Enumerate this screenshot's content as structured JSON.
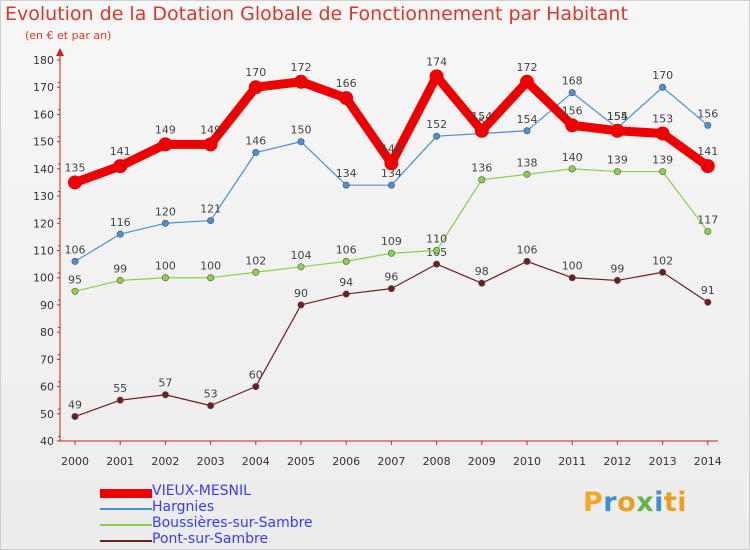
{
  "header": {
    "title": "Evolution de la Dotation Globale de Fonctionnement par Habitant",
    "subtitle": "(en € et par an)"
  },
  "logo": {
    "text": "Proxiti",
    "letters": [
      "P",
      "r",
      "o",
      "x",
      "i",
      "ti"
    ]
  },
  "chart_data": {
    "type": "line",
    "title": "Evolution de la Dotation Globale de Fonctionnement par Habitant",
    "subtitle": "(en € et par an)",
    "xlabel": "",
    "ylabel": "",
    "x": [
      "2000",
      "2001",
      "2002",
      "2003",
      "2004",
      "2005",
      "2006",
      "2007",
      "2008",
      "2009",
      "2010",
      "2011",
      "2012",
      "2013",
      "2014"
    ],
    "ylim": [
      40,
      180
    ],
    "yticks": [
      40,
      50,
      60,
      70,
      80,
      90,
      100,
      110,
      120,
      130,
      140,
      150,
      160,
      170,
      180
    ],
    "grid": false,
    "legend_position": "bottom-left",
    "series": [
      {
        "name": "VIEUX-MESNIL",
        "color": "#ee0000",
        "values": [
          135,
          141,
          149,
          149,
          170,
          172,
          166,
          142,
          174,
          154,
          172,
          156,
          154,
          153,
          141
        ]
      },
      {
        "name": "Hargnies",
        "color": "#4d8fd1",
        "values": [
          106,
          116,
          120,
          121,
          146,
          150,
          134,
          134,
          152,
          153,
          154,
          168,
          155,
          170,
          156
        ]
      },
      {
        "name": "Boussières-sur-Sambre",
        "color": "#8ad24e",
        "values": [
          95,
          99,
          100,
          100,
          102,
          104,
          106,
          109,
          110,
          136,
          138,
          140,
          139,
          139,
          117
        ]
      },
      {
        "name": "Pont-sur-Sambre",
        "color": "#6e1e1e",
        "values": [
          49,
          55,
          57,
          53,
          60,
          90,
          94,
          96,
          105,
          98,
          106,
          100,
          99,
          102,
          91
        ]
      }
    ]
  }
}
